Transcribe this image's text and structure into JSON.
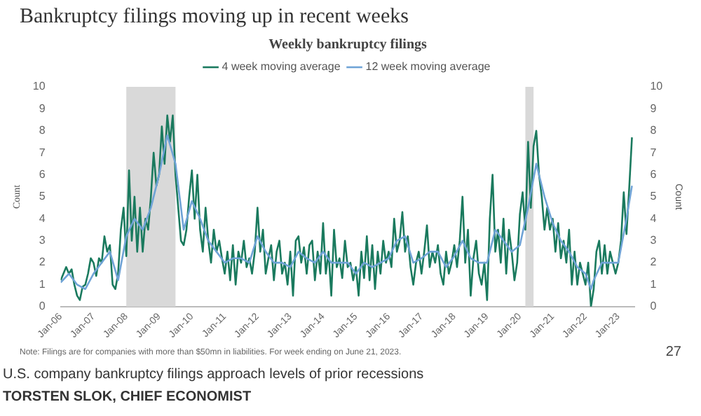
{
  "chart_data": {
    "type": "line",
    "title": "Bankruptcy filings moving up in recent weeks",
    "subtitle": "Weekly bankruptcy filings",
    "ylabel": "Count",
    "y2label": "Count",
    "annotations": [
      "Note: Filings are for companies with more than $50mn in liabilities. For week ending on June 21, 2023.",
      "27",
      "U.S. company bankruptcy filings approach levels of prior recessions",
      "TORSTEN SLOK, CHIEF ECONOMIST"
    ],
    "xlim": [
      "2006-01",
      "2023-07"
    ],
    "xticks": [
      {
        "value": "2006-01",
        "label": "Jan-06"
      },
      {
        "value": "2007-01",
        "label": "Jan-07"
      },
      {
        "value": "2008-01",
        "label": "Jan-08"
      },
      {
        "value": "2009-01",
        "label": "Jan-09"
      },
      {
        "value": "2010-01",
        "label": "Jan-10"
      },
      {
        "value": "2011-01",
        "label": "Jan-11"
      },
      {
        "value": "2012-01",
        "label": "Jan-12"
      },
      {
        "value": "2013-01",
        "label": "Jan-13"
      },
      {
        "value": "2014-01",
        "label": "Jan-14"
      },
      {
        "value": "2015-01",
        "label": "Jan-15"
      },
      {
        "value": "2016-01",
        "label": "Jan-16"
      },
      {
        "value": "2017-01",
        "label": "Jan-17"
      },
      {
        "value": "2018-01",
        "label": "Jan-18"
      },
      {
        "value": "2019-01",
        "label": "Jan-19"
      },
      {
        "value": "2020-01",
        "label": "Jan-20"
      },
      {
        "value": "2021-01",
        "label": "Jan-21"
      },
      {
        "value": "2022-01",
        "label": "Jan-22"
      },
      {
        "value": "2023-01",
        "label": "Jan-23"
      }
    ],
    "ylim": [
      0,
      10
    ],
    "yticks": [
      0,
      1,
      2,
      3,
      4,
      5,
      6,
      7,
      8,
      9,
      10
    ],
    "y2lim": [
      0,
      10
    ],
    "y2ticks": [
      0,
      1,
      2,
      3,
      4,
      5,
      6,
      7,
      8,
      9,
      10
    ],
    "grid": false,
    "legend": "top",
    "marker": "none",
    "line_style": "solid",
    "bands": [
      {
        "axis": "x",
        "from": "2008-01",
        "to": "2009-07",
        "color": "#d9d9d9"
      },
      {
        "axis": "x",
        "from": "2020-03",
        "to": "2020-06",
        "color": "#d9d9d9"
      }
    ],
    "series": [
      {
        "name": "4 week moving average",
        "color": "#1a7a5e",
        "x": [
          "2006-01",
          "2006-02",
          "2006-03",
          "2006-04",
          "2006-05",
          "2006-06",
          "2006-07",
          "2006-08",
          "2006-09",
          "2006-10",
          "2006-11",
          "2006-12",
          "2007-01",
          "2007-02",
          "2007-03",
          "2007-04",
          "2007-05",
          "2007-06",
          "2007-07",
          "2007-08",
          "2007-09",
          "2007-10",
          "2007-11",
          "2007-12",
          "2008-01",
          "2008-02",
          "2008-03",
          "2008-04",
          "2008-05",
          "2008-06",
          "2008-07",
          "2008-08",
          "2008-09",
          "2008-10",
          "2008-11",
          "2008-12",
          "2009-01",
          "2009-02",
          "2009-03",
          "2009-04",
          "2009-05",
          "2009-06",
          "2009-07",
          "2009-08",
          "2009-09",
          "2009-10",
          "2009-11",
          "2009-12",
          "2010-01",
          "2010-02",
          "2010-03",
          "2010-04",
          "2010-05",
          "2010-06",
          "2010-07",
          "2010-08",
          "2010-09",
          "2010-10",
          "2010-11",
          "2010-12",
          "2011-01",
          "2011-02",
          "2011-03",
          "2011-04",
          "2011-05",
          "2011-06",
          "2011-07",
          "2011-08",
          "2011-09",
          "2011-10",
          "2011-11",
          "2011-12",
          "2012-01",
          "2012-02",
          "2012-03",
          "2012-04",
          "2012-05",
          "2012-06",
          "2012-07",
          "2012-08",
          "2012-09",
          "2012-10",
          "2012-11",
          "2012-12",
          "2013-01",
          "2013-02",
          "2013-03",
          "2013-04",
          "2013-05",
          "2013-06",
          "2013-07",
          "2013-08",
          "2013-09",
          "2013-10",
          "2013-11",
          "2013-12",
          "2014-01",
          "2014-02",
          "2014-03",
          "2014-04",
          "2014-05",
          "2014-06",
          "2014-07",
          "2014-08",
          "2014-09",
          "2014-10",
          "2014-11",
          "2014-12",
          "2015-01",
          "2015-02",
          "2015-03",
          "2015-04",
          "2015-05",
          "2015-06",
          "2015-07",
          "2015-08",
          "2015-09",
          "2015-10",
          "2015-11",
          "2015-12",
          "2016-01",
          "2016-02",
          "2016-03",
          "2016-04",
          "2016-05",
          "2016-06",
          "2016-07",
          "2016-08",
          "2016-09",
          "2016-10",
          "2016-11",
          "2016-12",
          "2017-01",
          "2017-02",
          "2017-03",
          "2017-04",
          "2017-05",
          "2017-06",
          "2017-07",
          "2017-08",
          "2017-09",
          "2017-10",
          "2017-11",
          "2017-12",
          "2018-01",
          "2018-02",
          "2018-03",
          "2018-04",
          "2018-05",
          "2018-06",
          "2018-07",
          "2018-08",
          "2018-09",
          "2018-10",
          "2018-11",
          "2018-12",
          "2019-01",
          "2019-02",
          "2019-03",
          "2019-04",
          "2019-05",
          "2019-06",
          "2019-07",
          "2019-08",
          "2019-09",
          "2019-10",
          "2019-11",
          "2019-12",
          "2020-01",
          "2020-02",
          "2020-03",
          "2020-04",
          "2020-05",
          "2020-06",
          "2020-07",
          "2020-08",
          "2020-09",
          "2020-10",
          "2020-11",
          "2020-12",
          "2021-01",
          "2021-02",
          "2021-03",
          "2021-04",
          "2021-05",
          "2021-06",
          "2021-07",
          "2021-08",
          "2021-09",
          "2021-10",
          "2021-11",
          "2021-12",
          "2022-01",
          "2022-02",
          "2022-03",
          "2022-04",
          "2022-05",
          "2022-06",
          "2022-07",
          "2022-08",
          "2022-09",
          "2022-10",
          "2022-11",
          "2022-12",
          "2023-01",
          "2023-02",
          "2023-03",
          "2023-04",
          "2023-05",
          "2023-06"
        ],
        "values": [
          1.2,
          1.5,
          1.8,
          1.5,
          1.7,
          1.0,
          0.5,
          0.3,
          0.9,
          1.0,
          1.5,
          2.2,
          2.0,
          1.4,
          2.2,
          2.0,
          3.2,
          2.5,
          2.8,
          1.0,
          0.8,
          1.5,
          3.5,
          4.5,
          2.3,
          6.2,
          3.0,
          5.0,
          2.5,
          4.5,
          2.5,
          4.0,
          3.5,
          5.0,
          7.0,
          5.5,
          6.0,
          8.2,
          6.5,
          8.7,
          7.5,
          8.7,
          6.0,
          4.5,
          3.0,
          2.8,
          3.5,
          5.0,
          6.2,
          4.0,
          6.0,
          3.5,
          2.5,
          4.5,
          3.0,
          2.0,
          3.5,
          2.5,
          3.0,
          2.2,
          1.5,
          2.5,
          1.2,
          2.8,
          1.0,
          2.5,
          2.0,
          3.0,
          1.8,
          2.2,
          1.5,
          2.5,
          4.5,
          2.5,
          3.5,
          1.5,
          2.2,
          2.8,
          1.2,
          2.5,
          3.0,
          1.5,
          2.0,
          1.0,
          2.5,
          0.5,
          3.0,
          3.2,
          2.0,
          2.7,
          1.5,
          2.8,
          3.0,
          1.2,
          2.5,
          1.5,
          3.8,
          1.5,
          2.5,
          0.5,
          3.5,
          1.8,
          2.2,
          1.3,
          3.0,
          1.8,
          2.0,
          1.2,
          1.8,
          0.5,
          2.5,
          1.3,
          3.2,
          1.2,
          2.8,
          0.8,
          2.5,
          1.5,
          3.0,
          2.0,
          2.5,
          1.8,
          4.0,
          2.5,
          3.0,
          4.3,
          2.5,
          3.2,
          1.8,
          1.0,
          2.0,
          2.5,
          1.5,
          2.5,
          3.7,
          1.8,
          2.5,
          2.0,
          2.8,
          1.5,
          1.0,
          2.5,
          1.5,
          2.0,
          2.8,
          1.8,
          3.0,
          5.0,
          2.0,
          3.5,
          0.5,
          2.2,
          3.0,
          1.5,
          1.0,
          2.0,
          0.3,
          4.0,
          6.0,
          2.5,
          3.5,
          2.0,
          4.0,
          1.5,
          3.5,
          2.5,
          1.2,
          2.0,
          4.2,
          5.2,
          3.5,
          7.5,
          4.5,
          7.3,
          8.0,
          6.0,
          5.0,
          3.5,
          4.5,
          3.5,
          4.0,
          2.5,
          3.8,
          2.2,
          3.0,
          2.0,
          3.5,
          1.0,
          2.5,
          1.0,
          2.0,
          1.5,
          1.0,
          2.0,
          0.0,
          0.8,
          2.5,
          3.0,
          1.5,
          2.8,
          1.5,
          2.5,
          2.0,
          1.5,
          2.0,
          3.0,
          5.2,
          3.3,
          5.4,
          7.7
        ]
      },
      {
        "name": "12 week moving average",
        "color": "#6fa3d6",
        "x": [
          "2006-01",
          "2006-04",
          "2006-07",
          "2006-10",
          "2007-01",
          "2007-04",
          "2007-07",
          "2007-10",
          "2008-01",
          "2008-04",
          "2008-07",
          "2008-10",
          "2009-01",
          "2009-04",
          "2009-07",
          "2009-10",
          "2010-01",
          "2010-04",
          "2010-07",
          "2010-10",
          "2011-01",
          "2011-04",
          "2011-07",
          "2011-10",
          "2012-01",
          "2012-04",
          "2012-07",
          "2012-10",
          "2013-01",
          "2013-04",
          "2013-07",
          "2013-10",
          "2014-01",
          "2014-04",
          "2014-07",
          "2014-10",
          "2015-01",
          "2015-04",
          "2015-07",
          "2015-10",
          "2016-01",
          "2016-04",
          "2016-07",
          "2016-10",
          "2017-01",
          "2017-04",
          "2017-07",
          "2017-10",
          "2018-01",
          "2018-04",
          "2018-07",
          "2018-10",
          "2019-01",
          "2019-04",
          "2019-07",
          "2019-10",
          "2020-01",
          "2020-04",
          "2020-07",
          "2020-10",
          "2021-01",
          "2021-04",
          "2021-07",
          "2021-10",
          "2022-01",
          "2022-03",
          "2022-04",
          "2022-07",
          "2022-10",
          "2023-01",
          "2023-04",
          "2023-06"
        ],
        "values": [
          1.1,
          1.5,
          1.0,
          0.8,
          1.5,
          2.0,
          2.5,
          1.2,
          3.2,
          4.0,
          3.5,
          4.5,
          6.0,
          7.8,
          6.5,
          3.5,
          4.8,
          4.0,
          3.0,
          2.5,
          2.0,
          2.2,
          2.2,
          2.0,
          3.2,
          2.5,
          2.0,
          2.0,
          1.8,
          2.5,
          2.2,
          2.0,
          2.5,
          2.0,
          2.0,
          2.0,
          1.5,
          2.0,
          1.8,
          2.0,
          2.2,
          3.0,
          3.2,
          2.0,
          2.2,
          2.5,
          2.5,
          1.8,
          2.3,
          3.0,
          2.2,
          2.0,
          2.0,
          3.5,
          3.0,
          2.5,
          2.8,
          4.5,
          6.5,
          5.0,
          3.8,
          3.0,
          2.5,
          1.8,
          1.5,
          0.8,
          1.2,
          2.0,
          2.0,
          2.0,
          4.0,
          5.5
        ]
      }
    ]
  }
}
